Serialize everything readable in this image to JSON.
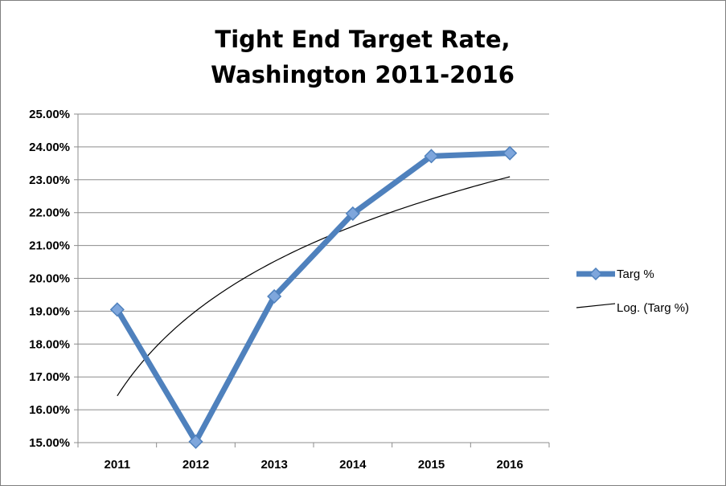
{
  "chart_data": {
    "type": "line",
    "title_lines": [
      "Tight End Target Rate,",
      "Washington 2011-2016"
    ],
    "categories": [
      "2011",
      "2012",
      "2013",
      "2014",
      "2015",
      "2016"
    ],
    "series": [
      {
        "name": "Targ %",
        "values": [
          19.05,
          15.03,
          19.45,
          21.97,
          23.72,
          23.81
        ],
        "color": "#4F81BD",
        "marker": "diamond"
      }
    ],
    "trendline": {
      "name": "Log. (Targ %)",
      "type": "logarithmic",
      "color": "#000000"
    },
    "yticks": [
      "15.00%",
      "16.00%",
      "17.00%",
      "18.00%",
      "19.00%",
      "20.00%",
      "21.00%",
      "22.00%",
      "23.00%",
      "24.00%",
      "25.00%"
    ],
    "ylim": [
      15,
      25
    ],
    "xlabel": "",
    "ylabel": "",
    "grid": true,
    "legend": "right"
  }
}
